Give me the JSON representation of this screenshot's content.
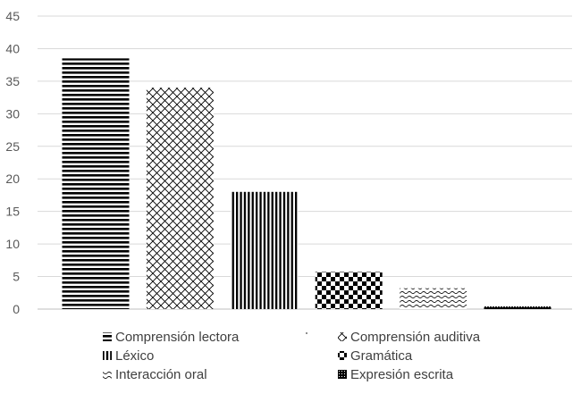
{
  "chart_data": {
    "type": "bar",
    "categories": [
      "Comprensión lectora",
      "Comprensión auditiva",
      "Léxico",
      "Gramática",
      "Interacción oral",
      "Expresión escrita"
    ],
    "values": [
      38.5,
      34,
      18,
      5.7,
      3.2,
      0.4
    ],
    "ylim": [
      0,
      45
    ],
    "yticks": [
      "0",
      "5",
      "10",
      "15",
      "20",
      "25",
      "30",
      "35",
      "40",
      "45"
    ],
    "grid": true,
    "legend_position": "bottom",
    "legend": [
      {
        "label": "Comprensión lectora",
        "pattern": "horizontal-stripes"
      },
      {
        "label": "Comprensión auditiva",
        "pattern": "crosshatch"
      },
      {
        "label": "Léxico",
        "pattern": "vertical-stripes"
      },
      {
        "label": "Gramática",
        "pattern": "checkerboard"
      },
      {
        "label": "Interacción oral",
        "pattern": "waves"
      },
      {
        "label": "Expresión escrita",
        "pattern": "dotted"
      }
    ],
    "colors": {
      "ink": "#000000",
      "grid": "#d9d9d9",
      "tick_text": "#595959",
      "legend_text": "#404040"
    }
  }
}
